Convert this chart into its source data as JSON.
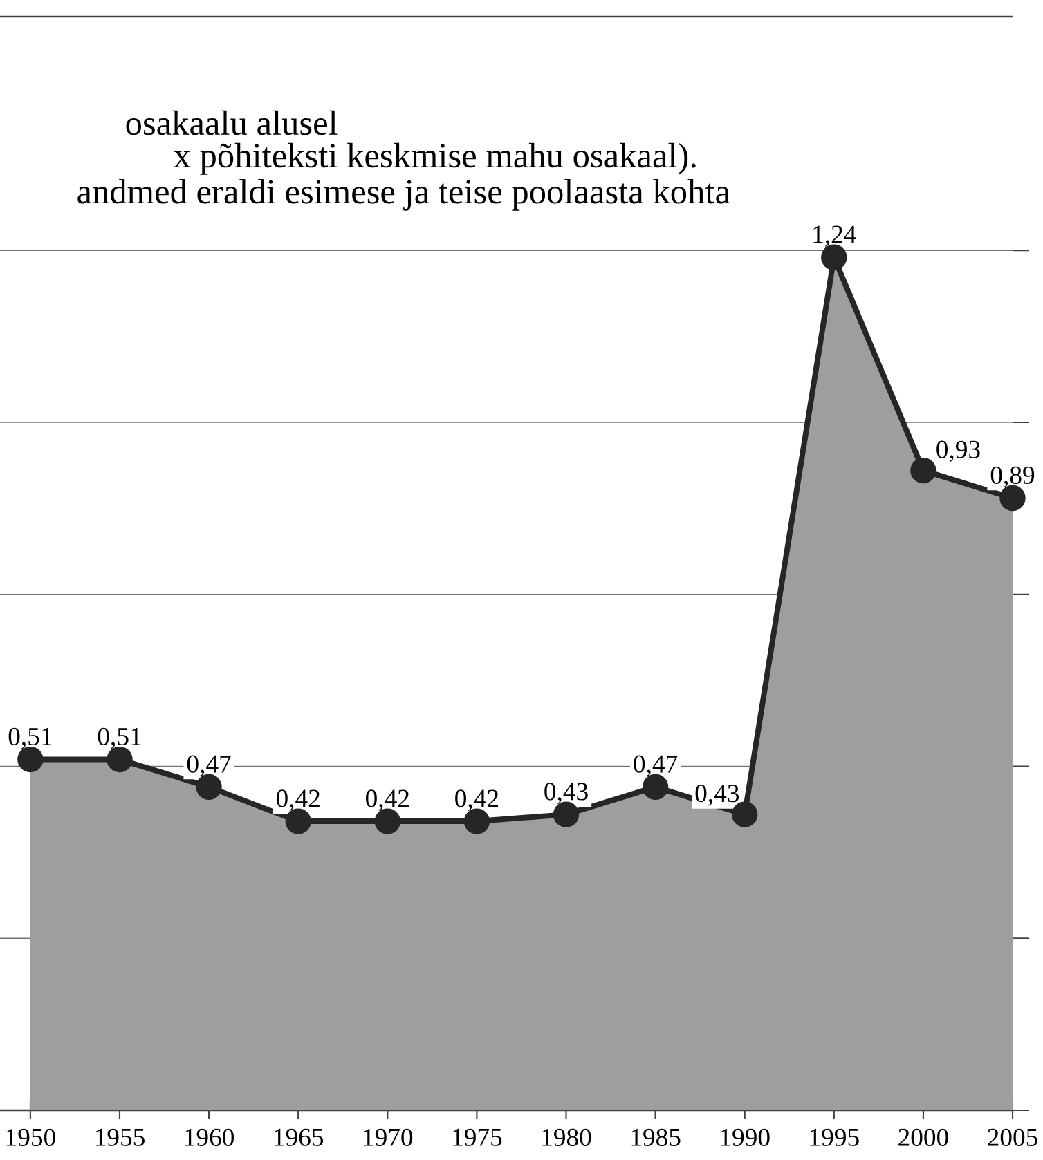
{
  "chart_data": {
    "type": "area",
    "annotations": [
      "osakaalu alusel",
      "x põhiteksti keskmise mahu osakaal).",
      "andmed eraldi esimese ja teise poolaasta kohta"
    ],
    "x": [
      1950,
      1955,
      1960,
      1965,
      1970,
      1975,
      1980,
      1985,
      1990,
      1995,
      2000,
      2005
    ],
    "series": [
      {
        "color": "#9e9e9e",
        "values": [
          0.51,
          0.51,
          0.47,
          0.42,
          0.42,
          0.42,
          0.43,
          0.47,
          0.43,
          1.24,
          0.93,
          0.89
        ],
        "value_labels": [
          "0,51",
          "0,51",
          "0,47",
          "0,42",
          "0,42",
          "0,42",
          "0,43",
          "0,47",
          "0,43",
          "1,24",
          "0,93",
          "0,89"
        ]
      }
    ],
    "xlim": [
      1948.3,
      2005
    ],
    "xticks": [
      1950,
      1955,
      1960,
      1965,
      1970,
      1975,
      1980,
      1985,
      1990,
      1995,
      2000,
      2005
    ],
    "ylim": [
      0,
      1.59
    ],
    "yticks": [
      {
        "value": 0,
        "label": null
      },
      {
        "value": 0.25,
        "label": null
      },
      {
        "value": 0.5,
        "label": null
      },
      {
        "value": 0.75,
        "label": null
      },
      {
        "value": 1.0,
        "label": null
      },
      {
        "value": 1.25,
        "label": null
      }
    ],
    "tick_labels": "x",
    "grid": "y",
    "marker": "circle"
  }
}
